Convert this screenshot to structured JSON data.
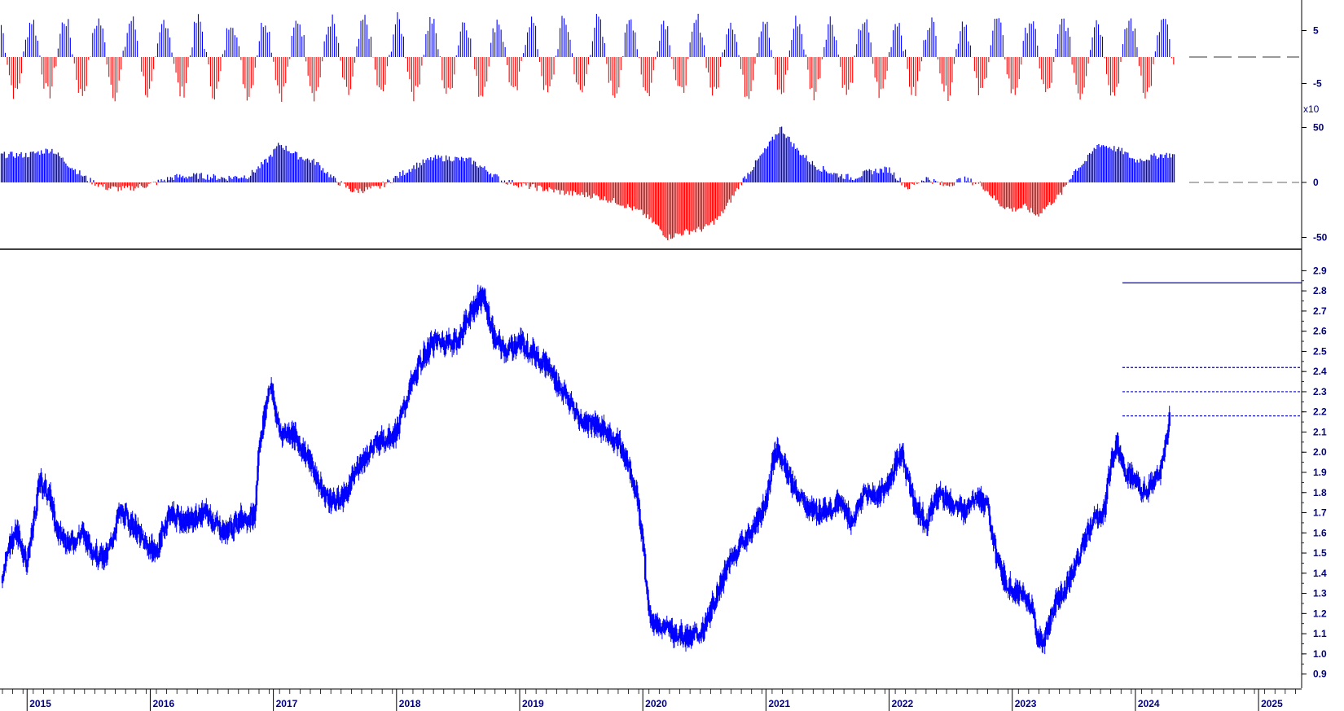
{
  "chart_data": [
    {
      "type": "bar",
      "panel": "short-term oscillator",
      "y_ticks": [
        "5",
        "-5"
      ],
      "baseline": 0,
      "colors": {
        "positive": "#0000ff",
        "negative": "#ff0000"
      },
      "pattern": "alternating swings roughly every 3 months between about +8 and -8"
    },
    {
      "type": "bar",
      "panel": "long-term oscillator",
      "multiplier_label": "x10",
      "y_ticks": [
        "50",
        "0",
        "-50"
      ],
      "baseline": 0,
      "colors": {
        "positive": "#0000ff",
        "negative": "#ff0000"
      },
      "series": [
        {
          "values": [
            [
              2015.0,
              25
            ],
            [
              2015.2,
              30
            ],
            [
              2015.35,
              15
            ],
            [
              2015.5,
              2
            ],
            [
              2015.65,
              -5
            ],
            [
              2015.8,
              -6
            ],
            [
              2016.0,
              -2
            ],
            [
              2016.2,
              5
            ],
            [
              2016.4,
              6
            ],
            [
              2016.6,
              4
            ],
            [
              2016.8,
              6
            ],
            [
              2016.95,
              20
            ],
            [
              2017.05,
              35
            ],
            [
              2017.2,
              24
            ],
            [
              2017.35,
              18
            ],
            [
              2017.5,
              2
            ],
            [
              2017.65,
              -8
            ],
            [
              2017.85,
              -5
            ],
            [
              2018.0,
              5
            ],
            [
              2018.15,
              15
            ],
            [
              2018.3,
              22
            ],
            [
              2018.45,
              22
            ],
            [
              2018.6,
              20
            ],
            [
              2018.75,
              10
            ],
            [
              2018.85,
              2
            ],
            [
              2019.0,
              -2
            ],
            [
              2019.2,
              -6
            ],
            [
              2019.4,
              -10
            ],
            [
              2019.6,
              -12
            ],
            [
              2019.8,
              -18
            ],
            [
              2020.0,
              -28
            ],
            [
              2020.12,
              -40
            ],
            [
              2020.2,
              -50
            ],
            [
              2020.35,
              -45
            ],
            [
              2020.5,
              -42
            ],
            [
              2020.62,
              -32
            ],
            [
              2020.72,
              -15
            ],
            [
              2020.8,
              0
            ],
            [
              2020.9,
              15
            ],
            [
              2021.0,
              30
            ],
            [
              2021.12,
              50
            ],
            [
              2021.25,
              30
            ],
            [
              2021.4,
              15
            ],
            [
              2021.55,
              8
            ],
            [
              2021.7,
              4
            ],
            [
              2021.85,
              10
            ],
            [
              2022.0,
              12
            ],
            [
              2022.15,
              -5
            ],
            [
              2022.3,
              4
            ],
            [
              2022.45,
              -3
            ],
            [
              2022.6,
              3
            ],
            [
              2022.75,
              -2
            ],
            [
              2022.9,
              -20
            ],
            [
              2023.0,
              -25
            ],
            [
              2023.1,
              -22
            ],
            [
              2023.2,
              -30
            ],
            [
              2023.3,
              -20
            ],
            [
              2023.4,
              -10
            ],
            [
              2023.5,
              10
            ],
            [
              2023.6,
              20
            ],
            [
              2023.7,
              35
            ],
            [
              2023.8,
              32
            ],
            [
              2023.9,
              28
            ],
            [
              2024.0,
              20
            ],
            [
              2024.1,
              22
            ],
            [
              2024.2,
              25
            ]
          ]
        }
      ]
    },
    {
      "type": "candlestick",
      "panel": "price",
      "color": "#0000ff",
      "x_ticks": [
        "2015",
        "2016",
        "2017",
        "2018",
        "2019",
        "2020",
        "2021",
        "2022",
        "2023",
        "2024",
        "2025"
      ],
      "y_ticks": [
        "2.9",
        "2.8",
        "2.7",
        "2.6",
        "2.5",
        "2.4",
        "2.3",
        "2.2",
        "2.1",
        "2.0",
        "1.9",
        "1.8",
        "1.7",
        "1.6",
        "1.5",
        "1.4",
        "1.3",
        "1.2",
        "1.1",
        "1.0",
        "0.9"
      ],
      "ylim": [
        0.85,
        2.95
      ],
      "xlim": [
        2014.78,
        2025.35
      ],
      "horizontal_levels": [
        {
          "value": 2.84,
          "style": "solid"
        },
        {
          "value": 2.42,
          "style": "dotted"
        },
        {
          "value": 2.3,
          "style": "dotted"
        },
        {
          "value": 2.18,
          "style": "dotted"
        }
      ],
      "series": [
        {
          "values": [
            [
              2014.8,
              1.35
            ],
            [
              2014.85,
              1.55
            ],
            [
              2014.92,
              1.6
            ],
            [
              2015.0,
              1.45
            ],
            [
              2015.05,
              1.65
            ],
            [
              2015.1,
              1.85
            ],
            [
              2015.15,
              1.82
            ],
            [
              2015.2,
              1.75
            ],
            [
              2015.25,
              1.6
            ],
            [
              2015.35,
              1.55
            ],
            [
              2015.45,
              1.6
            ],
            [
              2015.55,
              1.5
            ],
            [
              2015.65,
              1.48
            ],
            [
              2015.75,
              1.7
            ],
            [
              2015.85,
              1.65
            ],
            [
              2015.95,
              1.55
            ],
            [
              2016.05,
              1.5
            ],
            [
              2016.15,
              1.7
            ],
            [
              2016.3,
              1.65
            ],
            [
              2016.45,
              1.7
            ],
            [
              2016.6,
              1.6
            ],
            [
              2016.75,
              1.68
            ],
            [
              2016.85,
              1.68
            ],
            [
              2016.88,
              2.0
            ],
            [
              2016.97,
              2.35
            ],
            [
              2017.05,
              2.1
            ],
            [
              2017.15,
              2.1
            ],
            [
              2017.2,
              2.05
            ],
            [
              2017.3,
              1.95
            ],
            [
              2017.4,
              1.8
            ],
            [
              2017.5,
              1.75
            ],
            [
              2017.6,
              1.8
            ],
            [
              2017.7,
              1.95
            ],
            [
              2017.85,
              2.05
            ],
            [
              2018.0,
              2.1
            ],
            [
              2018.1,
              2.3
            ],
            [
              2018.2,
              2.45
            ],
            [
              2018.3,
              2.55
            ],
            [
              2018.4,
              2.55
            ],
            [
              2018.5,
              2.55
            ],
            [
              2018.6,
              2.7
            ],
            [
              2018.7,
              2.78
            ],
            [
              2018.8,
              2.55
            ],
            [
              2018.9,
              2.5
            ],
            [
              2019.0,
              2.55
            ],
            [
              2019.1,
              2.5
            ],
            [
              2019.2,
              2.45
            ],
            [
              2019.3,
              2.35
            ],
            [
              2019.4,
              2.25
            ],
            [
              2019.5,
              2.15
            ],
            [
              2019.6,
              2.15
            ],
            [
              2019.7,
              2.1
            ],
            [
              2019.8,
              2.05
            ],
            [
              2019.88,
              1.95
            ],
            [
              2019.95,
              1.8
            ],
            [
              2020.0,
              1.55
            ],
            [
              2020.05,
              1.2
            ],
            [
              2020.1,
              1.15
            ],
            [
              2020.2,
              1.12
            ],
            [
              2020.3,
              1.1
            ],
            [
              2020.4,
              1.08
            ],
            [
              2020.5,
              1.12
            ],
            [
              2020.6,
              1.3
            ],
            [
              2020.7,
              1.45
            ],
            [
              2020.8,
              1.55
            ],
            [
              2020.9,
              1.62
            ],
            [
              2021.0,
              1.75
            ],
            [
              2021.05,
              1.95
            ],
            [
              2021.1,
              2.02
            ],
            [
              2021.2,
              1.85
            ],
            [
              2021.3,
              1.75
            ],
            [
              2021.4,
              1.7
            ],
            [
              2021.5,
              1.72
            ],
            [
              2021.6,
              1.75
            ],
            [
              2021.7,
              1.65
            ],
            [
              2021.8,
              1.8
            ],
            [
              2021.9,
              1.78
            ],
            [
              2022.0,
              1.85
            ],
            [
              2022.1,
              2.0
            ],
            [
              2022.2,
              1.75
            ],
            [
              2022.3,
              1.65
            ],
            [
              2022.4,
              1.8
            ],
            [
              2022.5,
              1.75
            ],
            [
              2022.6,
              1.7
            ],
            [
              2022.7,
              1.8
            ],
            [
              2022.8,
              1.72
            ],
            [
              2022.88,
              1.45
            ],
            [
              2022.95,
              1.35
            ],
            [
              2023.05,
              1.3
            ],
            [
              2023.15,
              1.25
            ],
            [
              2023.2,
              1.1
            ],
            [
              2023.25,
              1.05
            ],
            [
              2023.35,
              1.25
            ],
            [
              2023.45,
              1.35
            ],
            [
              2023.55,
              1.5
            ],
            [
              2023.65,
              1.65
            ],
            [
              2023.75,
              1.7
            ],
            [
              2023.8,
              1.95
            ],
            [
              2023.85,
              2.05
            ],
            [
              2023.92,
              1.9
            ],
            [
              2024.0,
              1.85
            ],
            [
              2024.1,
              1.8
            ],
            [
              2024.15,
              1.85
            ],
            [
              2024.2,
              1.9
            ],
            [
              2024.25,
              2.05
            ],
            [
              2024.28,
              2.18
            ]
          ]
        }
      ]
    }
  ]
}
